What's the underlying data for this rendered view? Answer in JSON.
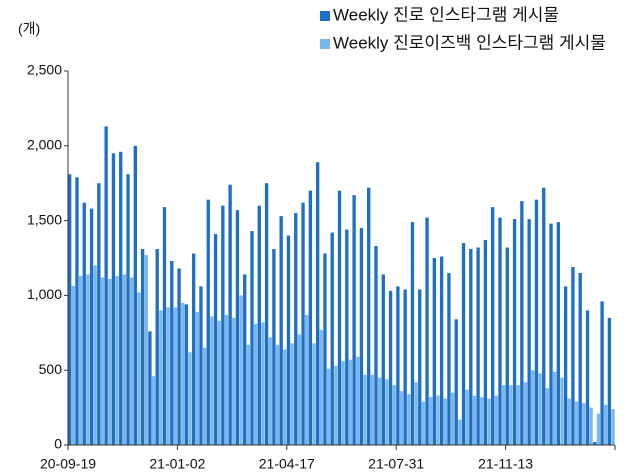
{
  "chart_data": {
    "type": "bar",
    "unit_label": "(개)",
    "categories": [
      "20-09-19",
      null,
      null,
      null,
      null,
      null,
      null,
      null,
      null,
      null,
      null,
      null,
      null,
      null,
      null,
      "21-01-02",
      null,
      null,
      null,
      null,
      null,
      null,
      null,
      null,
      null,
      null,
      null,
      null,
      null,
      null,
      "21-04-17",
      null,
      null,
      null,
      null,
      null,
      null,
      null,
      null,
      null,
      null,
      null,
      null,
      null,
      null,
      "21-07-31",
      null,
      null,
      null,
      null,
      null,
      null,
      null,
      null,
      null,
      null,
      null,
      null,
      null,
      null,
      "21-11-13",
      null,
      null,
      null,
      null,
      null,
      null,
      null,
      null,
      null,
      null,
      null,
      null,
      null,
      null
    ],
    "series": [
      {
        "name": "Weekly 진로 인스타그램 게시물",
        "color": "#1f6fc5",
        "values": [
          1810,
          1790,
          1620,
          1580,
          1750,
          2130,
          1950,
          1960,
          1810,
          2000,
          1310,
          760,
          1310,
          1590,
          1230,
          1180,
          940,
          1280,
          1060,
          1640,
          1410,
          1600,
          1740,
          1570,
          1140,
          1430,
          1600,
          1750,
          1310,
          1530,
          1400,
          1550,
          1620,
          1700,
          1890,
          1280,
          1420,
          1700,
          1440,
          1670,
          1450,
          1720,
          1330,
          1140,
          1030,
          1060,
          1040,
          1490,
          1040,
          1520,
          1250,
          1260,
          1150,
          840,
          1350,
          1310,
          1320,
          1370,
          1590,
          1520,
          1320,
          1510,
          1630,
          1510,
          1640,
          1720,
          1480,
          1490,
          1060,
          1190,
          1150,
          900,
          20,
          960,
          850
        ]
      },
      {
        "name": "Weekly 진로이즈백 인스타그램 게시물",
        "color": "#7ab8ec",
        "values": [
          1063,
          1130,
          1140,
          1200,
          1120,
          1110,
          1130,
          1140,
          1120,
          1020,
          1270,
          460,
          900,
          920,
          920,
          950,
          620,
          890,
          650,
          860,
          830,
          870,
          850,
          1000,
          670,
          810,
          820,
          720,
          670,
          640,
          680,
          740,
          870,
          680,
          770,
          510,
          530,
          560,
          570,
          590,
          470,
          470,
          450,
          440,
          400,
          360,
          340,
          420,
          290,
          320,
          330,
          310,
          350,
          170,
          370,
          330,
          320,
          310,
          330,
          400,
          400,
          400,
          420,
          500,
          480,
          380,
          490,
          450,
          310,
          290,
          280,
          250,
          210,
          270,
          240
        ]
      }
    ],
    "ylim": [
      0,
      2500
    ],
    "yticks": [
      0,
      {
        "value": 500,
        "label": "500"
      },
      {
        "value": 1000,
        "label": "1,000"
      },
      {
        "value": 1500,
        "label": "1,500"
      },
      {
        "value": 2000,
        "label": "2,000"
      },
      {
        "value": 2500,
        "label": "2,500"
      }
    ],
    "legend": "top-right"
  }
}
